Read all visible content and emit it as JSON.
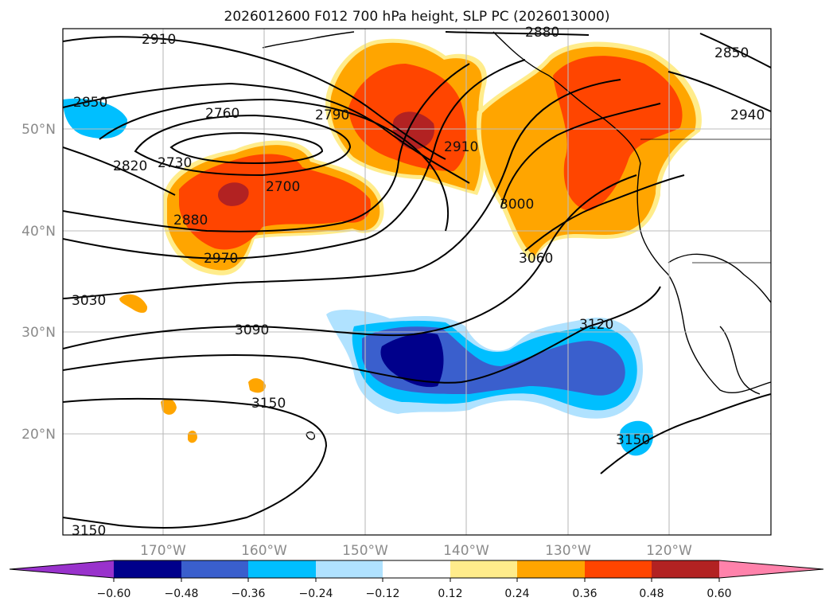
{
  "title": "2026012600 F012 700 hPa height, SLP PC (2026013000)",
  "latitude_labels": [
    "50°N",
    "40°N",
    "30°N",
    "20°N"
  ],
  "longitude_labels": [
    "170°W",
    "160°W",
    "150°W",
    "140°W",
    "130°W",
    "120°W"
  ],
  "contour_labels": [
    "2910",
    "2880",
    "2850",
    "2850",
    "2940",
    "2760",
    "2790",
    "2820",
    "2730",
    "2700",
    "2910",
    "3000",
    "2880",
    "2970",
    "3060",
    "3030",
    "3090",
    "3120",
    "3150",
    "3150",
    "3150"
  ],
  "colorbar": {
    "ticks": [
      "−0.60",
      "−0.48",
      "−0.36",
      "−0.24",
      "−0.12",
      "0.12",
      "0.24",
      "0.36",
      "0.48",
      "0.60"
    ],
    "colors": [
      "#9932cc",
      "#00008b",
      "#3a5fcd",
      "#00bfff",
      "#b0e2ff",
      "#ffffff",
      "#ffec8b",
      "#ffa500",
      "#ff4500",
      "#b22222",
      "#ff82ab"
    ]
  }
}
